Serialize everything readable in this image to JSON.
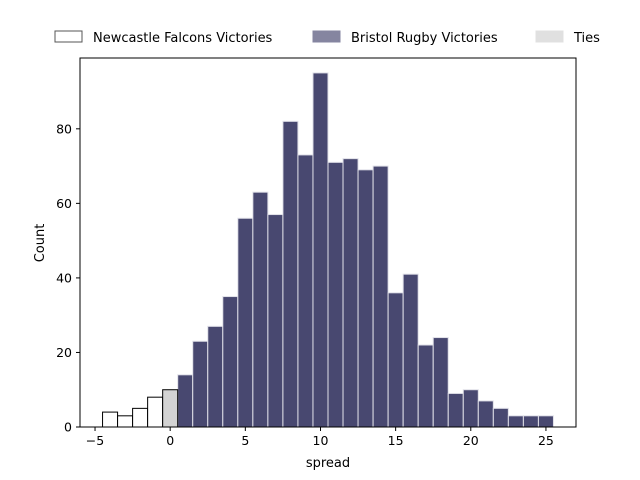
{
  "chart_data": {
    "type": "bar",
    "xlabel": "spread",
    "ylabel": "Count",
    "xlim": [
      -6,
      27
    ],
    "ylim": [
      0,
      99
    ],
    "x_ticks": [
      -5,
      0,
      5,
      10,
      15,
      20,
      25
    ],
    "y_ticks": [
      0,
      20,
      40,
      60,
      80
    ],
    "bin_width": 1,
    "legend_position": "top, outside plot",
    "grid": false,
    "series": [
      {
        "name": "Newcastle Falcons Victories",
        "color": "#ffffff",
        "edge_color": "#000000",
        "bin_centers": [
          -4,
          -3,
          -2,
          -1
        ],
        "values": [
          4,
          3,
          5,
          8
        ]
      },
      {
        "name": "Bristol Rugby Victories",
        "color": "#484870",
        "edge_color": "#e0e0e8",
        "bin_centers": [
          1,
          2,
          3,
          4,
          5,
          6,
          7,
          8,
          9,
          10,
          11,
          12,
          13,
          14,
          15,
          16,
          17,
          18,
          19,
          20,
          21,
          22,
          23,
          24,
          25
        ],
        "values": [
          14,
          23,
          27,
          35,
          56,
          63,
          57,
          82,
          73,
          95,
          71,
          72,
          69,
          70,
          36,
          41,
          22,
          24,
          9,
          10,
          7,
          5,
          3,
          3,
          3
        ]
      },
      {
        "name": "Ties",
        "color": "#d3d3d3",
        "edge_color": "#000000",
        "bin_centers": [
          0
        ],
        "values": [
          10
        ]
      }
    ],
    "legend_swatches": {
      "Newcastle Falcons Victories": {
        "fill": "#ffffff",
        "stroke": "#555555"
      },
      "Bristol Rugby Victories": {
        "fill": "#8585a0",
        "stroke": "#8585a0"
      },
      "Ties": {
        "fill": "#e0e0e0",
        "stroke": "#e0e0e0"
      }
    }
  }
}
